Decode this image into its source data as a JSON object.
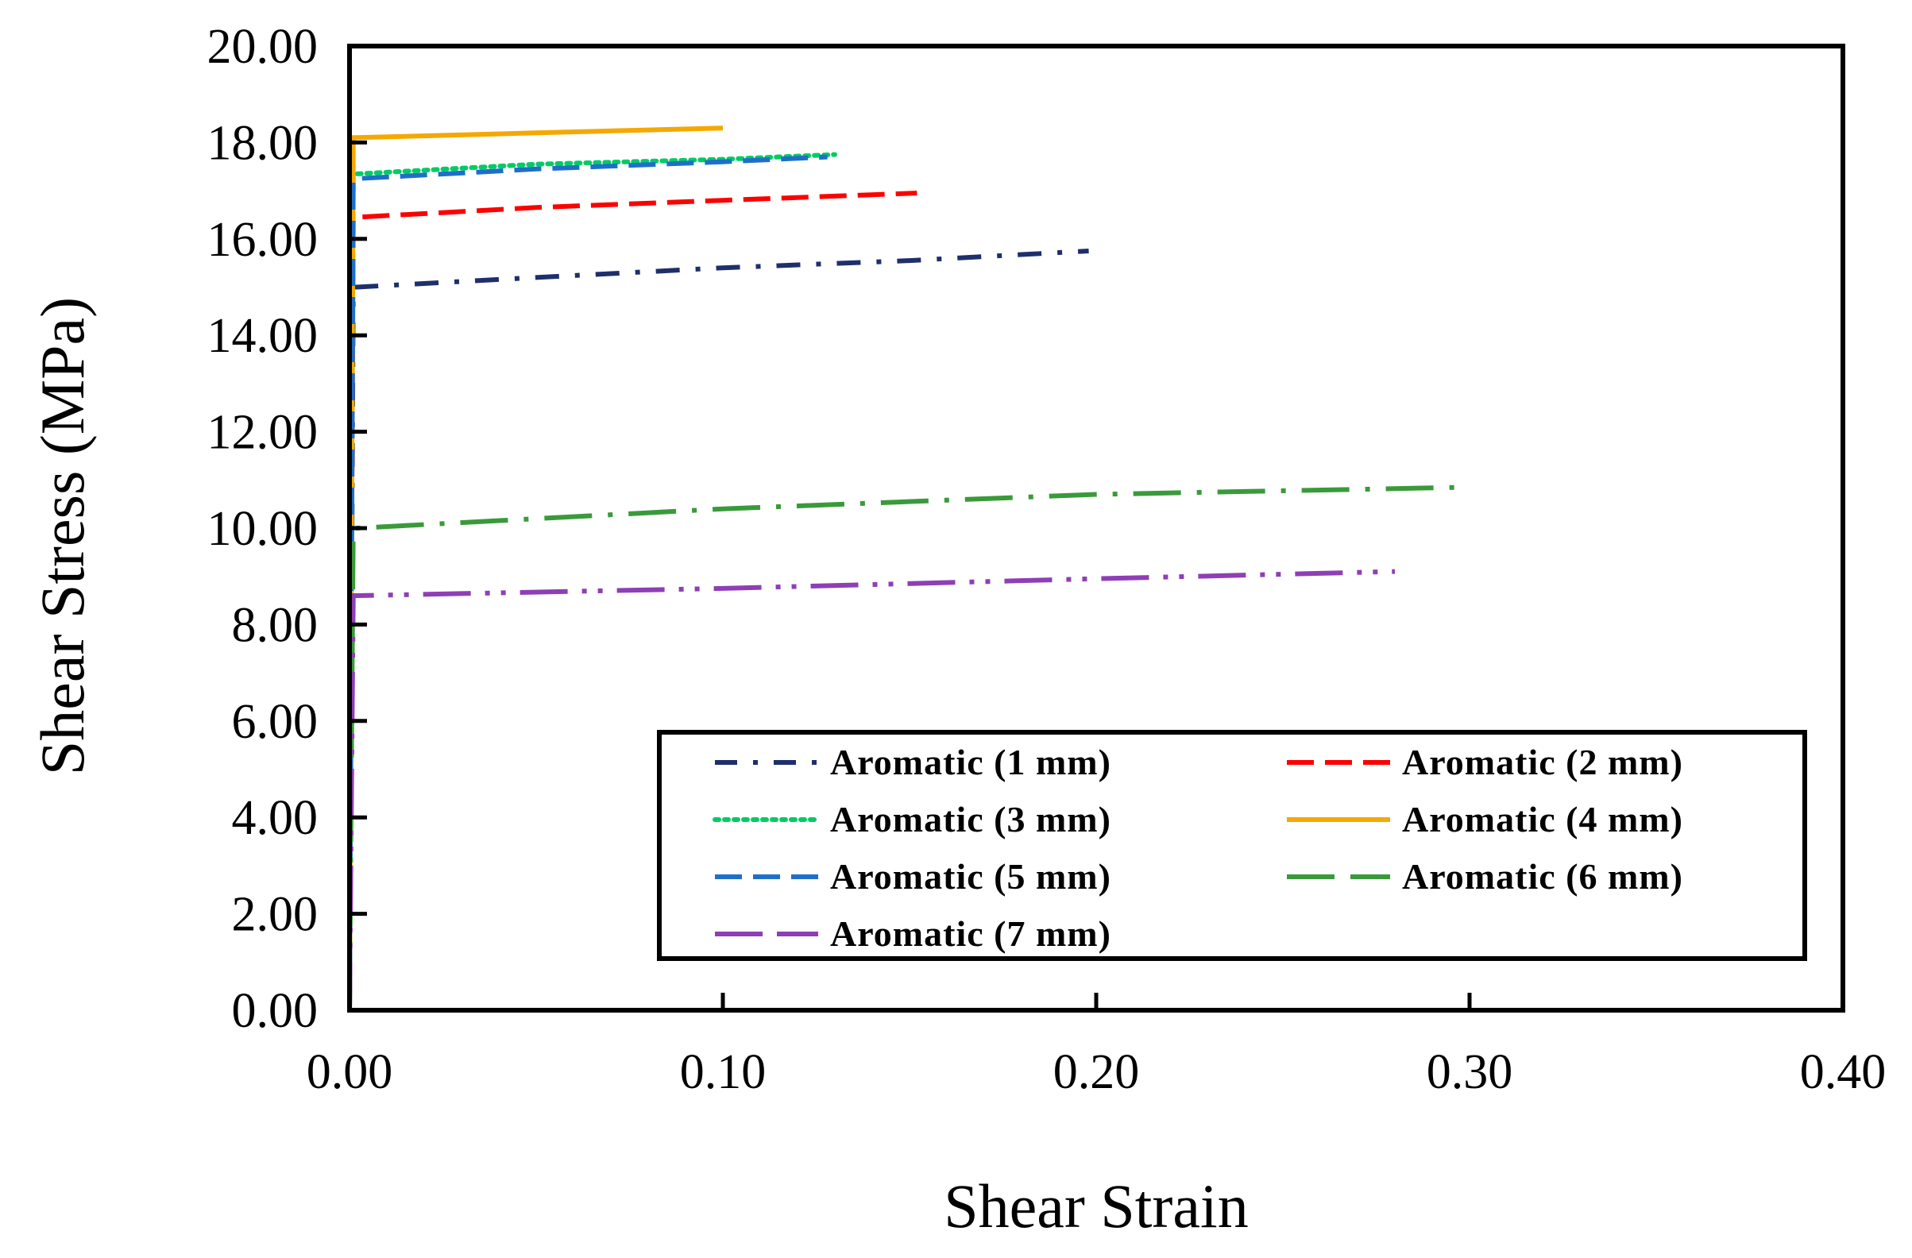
{
  "chart_data": {
    "type": "line",
    "title": "",
    "xlabel": "Shear Strain",
    "ylabel": "Shear Stress (MPa)",
    "xlim": [
      0,
      0.4
    ],
    "ylim": [
      0,
      20
    ],
    "xticks": [
      "0.00",
      "0.10",
      "0.20",
      "0.30",
      "0.40"
    ],
    "yticks": [
      "0.00",
      "2.00",
      "4.00",
      "6.00",
      "8.00",
      "10.00",
      "12.00",
      "14.00",
      "16.00",
      "18.00",
      "20.00"
    ],
    "grid": false,
    "legend_position": "bottom-right",
    "series": [
      {
        "name": "Aromatic (1 mm)",
        "color": "#1f2f6b",
        "style": "dash-dot",
        "x": [
          0,
          0.001,
          0.002,
          0.05,
          0.1,
          0.15,
          0.198
        ],
        "y": [
          0,
          15.0,
          15.0,
          15.2,
          15.4,
          15.55,
          15.75
        ]
      },
      {
        "name": "Aromatic (2 mm)",
        "color": "#ff0000",
        "style": "dashed",
        "x": [
          0,
          0.001,
          0.002,
          0.05,
          0.1,
          0.152
        ],
        "y": [
          0,
          16.4,
          16.45,
          16.65,
          16.8,
          16.95
        ]
      },
      {
        "name": "Aromatic (3 mm)",
        "color": "#00cc66",
        "style": "dotted",
        "x": [
          0,
          0.001,
          0.002,
          0.05,
          0.1,
          0.13
        ],
        "y": [
          0,
          17.3,
          17.35,
          17.55,
          17.65,
          17.75
        ]
      },
      {
        "name": "Aromatic (4 mm)",
        "color": "#f5a800",
        "style": "solid",
        "x": [
          0,
          0.001,
          0.002,
          0.05,
          0.1
        ],
        "y": [
          0,
          18.1,
          18.1,
          18.2,
          18.3
        ]
      },
      {
        "name": "Aromatic (5 mm)",
        "color": "#1f6fc9",
        "style": "dashed",
        "x": [
          0,
          0.001,
          0.002,
          0.05,
          0.1,
          0.128
        ],
        "y": [
          0,
          17.2,
          17.25,
          17.45,
          17.6,
          17.7
        ]
      },
      {
        "name": "Aromatic (6 mm)",
        "color": "#3a9a3a",
        "style": "long-dash-dot",
        "x": [
          0,
          0.001,
          0.002,
          0.1,
          0.2,
          0.3
        ],
        "y": [
          0,
          10.0,
          10.0,
          10.4,
          10.7,
          10.85
        ]
      },
      {
        "name": "Aromatic (7 mm)",
        "color": "#8e3fb5",
        "style": "long-dash-dot-dot",
        "x": [
          0,
          0.001,
          0.002,
          0.1,
          0.2,
          0.28
        ],
        "y": [
          0,
          8.6,
          8.6,
          8.75,
          8.95,
          9.1
        ]
      }
    ]
  }
}
